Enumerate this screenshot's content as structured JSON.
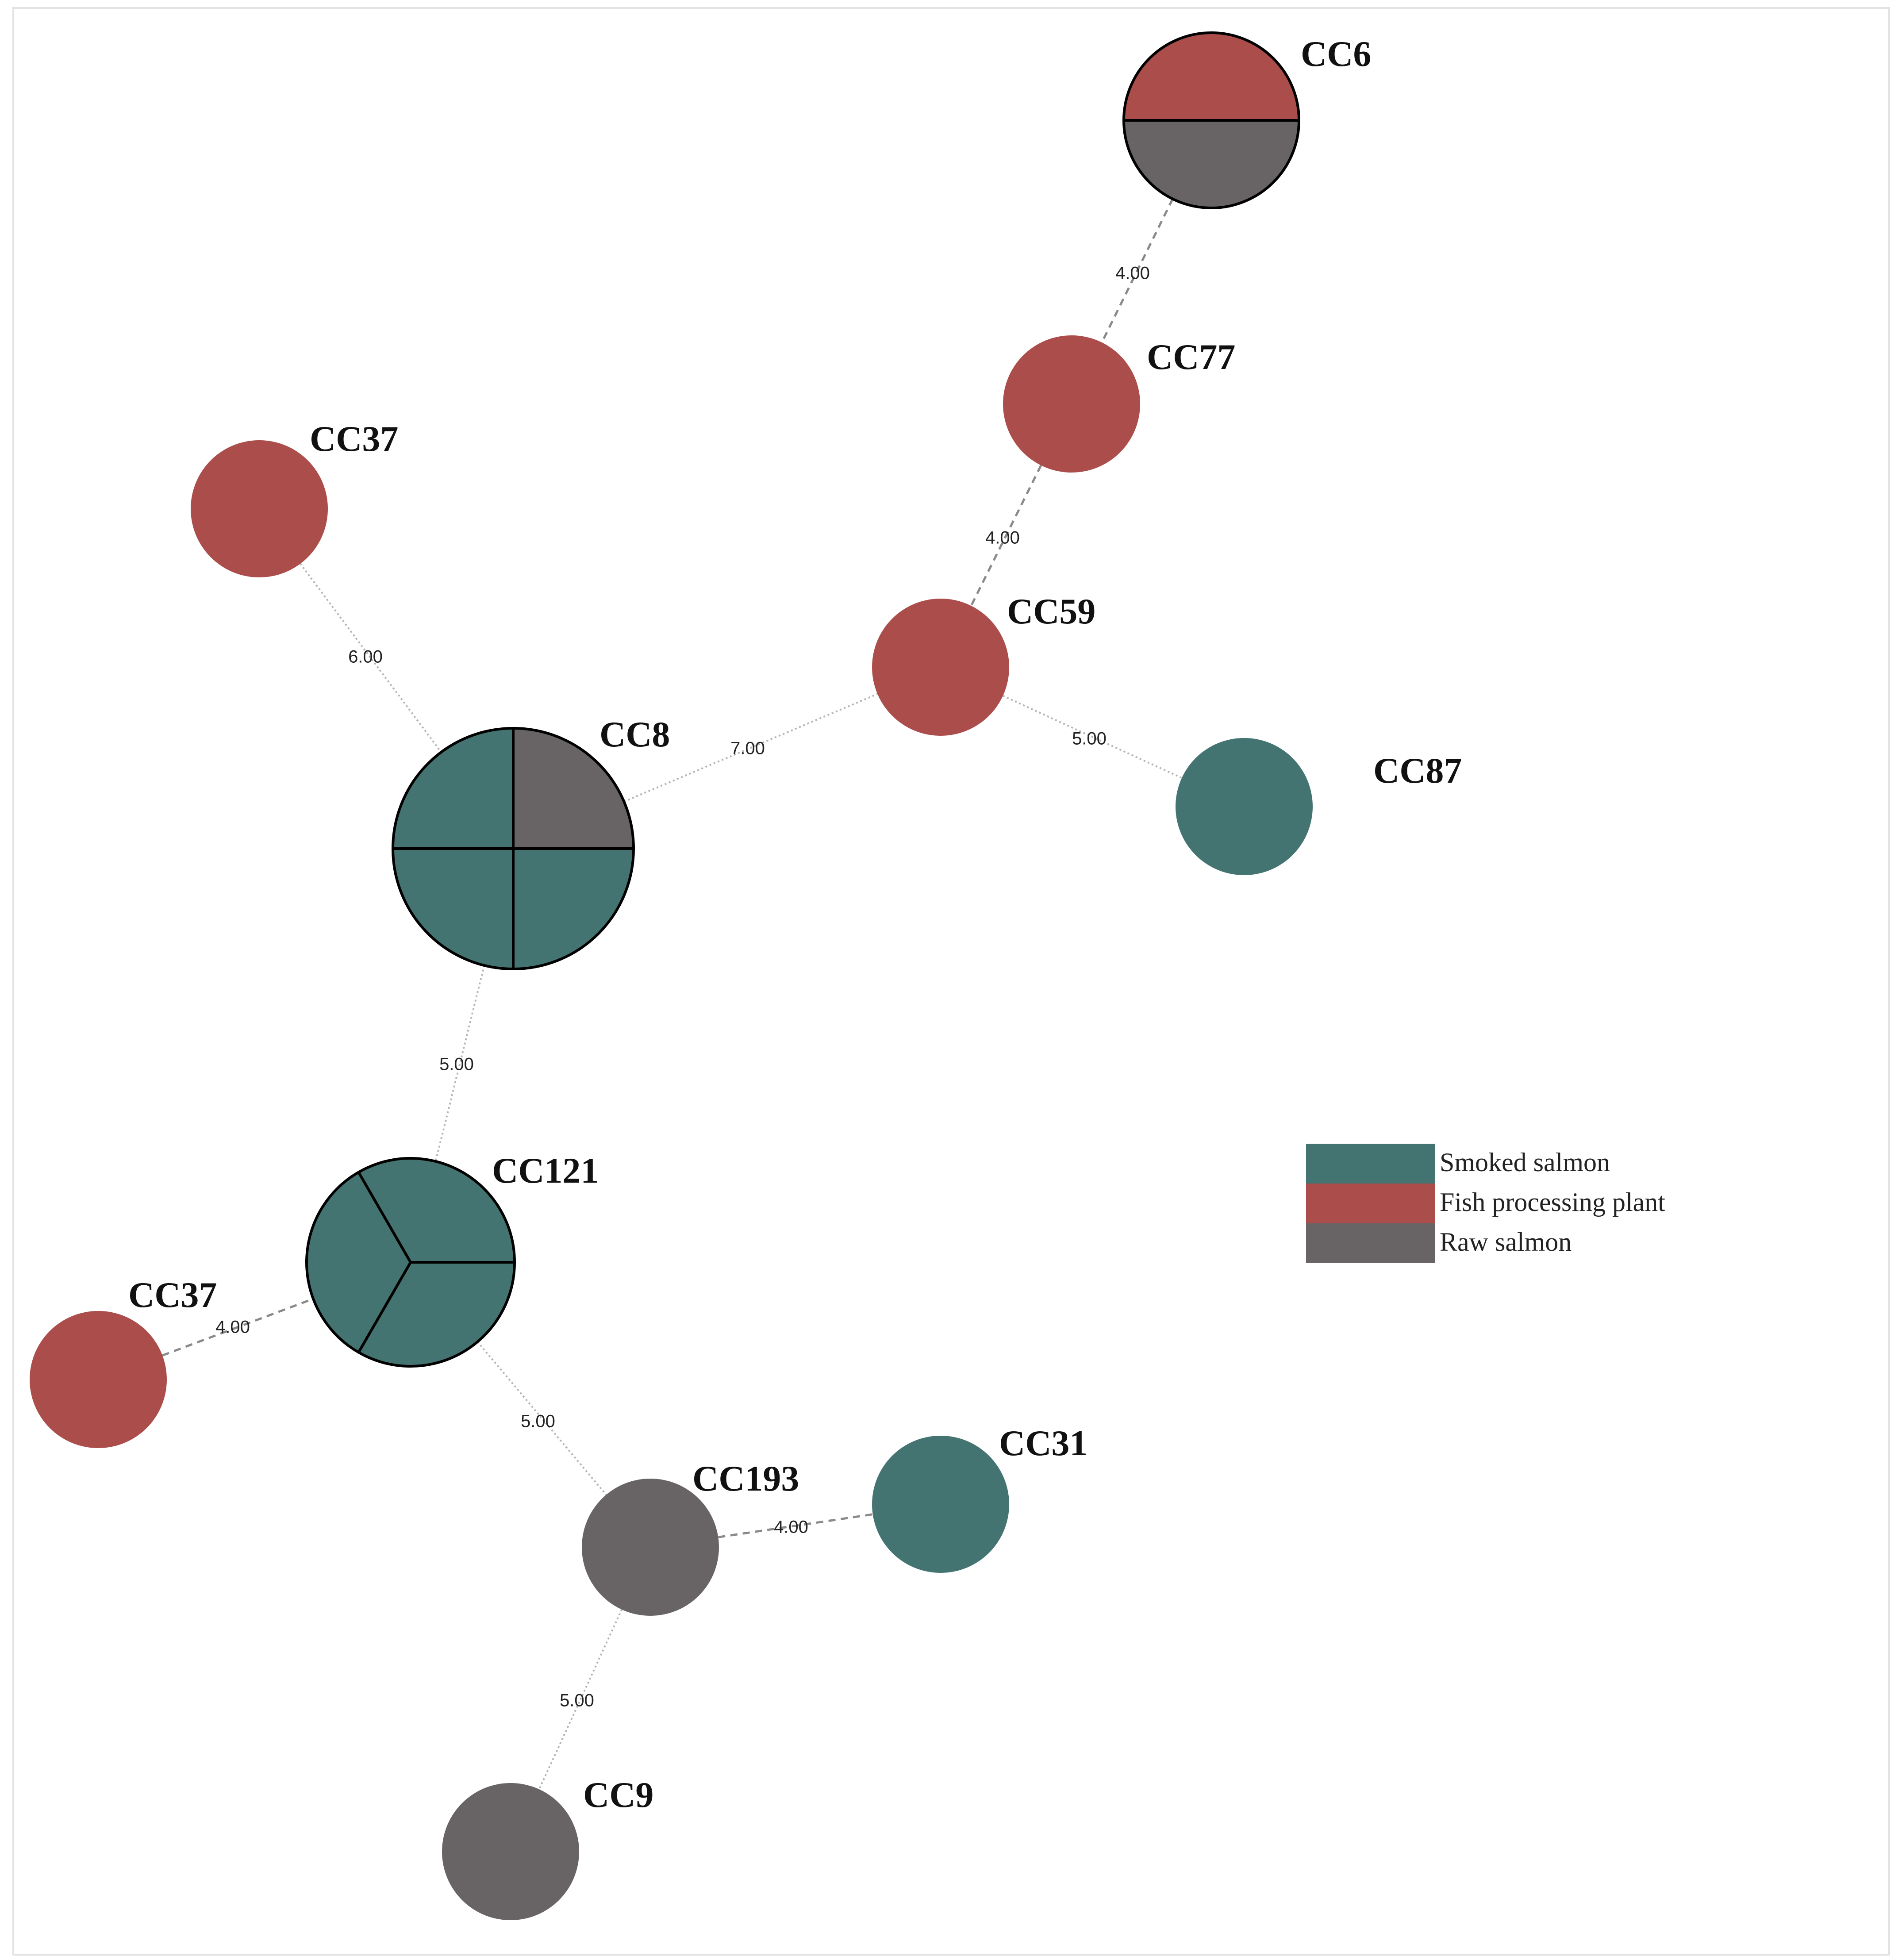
{
  "legend": {
    "items": [
      {
        "label": "Smoked salmon",
        "color": "#447471"
      },
      {
        "label": "Fish processing plant",
        "color": "#ab4d4b"
      },
      {
        "label": "Raw salmon",
        "color": "#686465"
      }
    ]
  },
  "nodes": [
    {
      "id": "cc6",
      "label": "CC6",
      "slices": [
        "Fish processing plant",
        "Raw salmon"
      ],
      "outlined": true
    },
    {
      "id": "cc77",
      "label": "CC77",
      "slices": [
        "Fish processing plant"
      ],
      "outlined": false
    },
    {
      "id": "cc37a",
      "label": "CC37",
      "slices": [
        "Fish processing plant"
      ],
      "outlined": false
    },
    {
      "id": "cc59",
      "label": "CC59",
      "slices": [
        "Fish processing plant"
      ],
      "outlined": false
    },
    {
      "id": "cc8",
      "label": "CC8",
      "slices": [
        "Smoked salmon",
        "Smoked salmon",
        "Smoked salmon",
        "Raw salmon"
      ],
      "outlined": true
    },
    {
      "id": "cc87",
      "label": "CC87",
      "slices": [
        "Smoked salmon"
      ],
      "outlined": false
    },
    {
      "id": "cc121",
      "label": "CC121",
      "slices": [
        "Smoked salmon",
        "Smoked salmon",
        "Smoked salmon"
      ],
      "outlined": true
    },
    {
      "id": "cc37b",
      "label": "CC37",
      "slices": [
        "Fish processing plant"
      ],
      "outlined": false
    },
    {
      "id": "cc193",
      "label": "CC193",
      "slices": [
        "Raw salmon"
      ],
      "outlined": false
    },
    {
      "id": "cc31",
      "label": "CC31",
      "slices": [
        "Smoked salmon"
      ],
      "outlined": false
    },
    {
      "id": "cc9",
      "label": "CC9",
      "slices": [
        "Raw salmon"
      ],
      "outlined": false
    }
  ],
  "edges": [
    {
      "source": "cc6",
      "target": "cc77",
      "label": "4.00",
      "style": "dashed"
    },
    {
      "source": "cc77",
      "target": "cc59",
      "label": "4.00",
      "style": "dashed"
    },
    {
      "source": "cc37a",
      "target": "cc8",
      "label": "6.00",
      "style": "dotted"
    },
    {
      "source": "cc8",
      "target": "cc59",
      "label": "7.00",
      "style": "dotted"
    },
    {
      "source": "cc59",
      "target": "cc87",
      "label": "5.00",
      "style": "dotted"
    },
    {
      "source": "cc8",
      "target": "cc121",
      "label": "5.00",
      "style": "dotted"
    },
    {
      "source": "cc37b",
      "target": "cc121",
      "label": "4.00",
      "style": "dashed"
    },
    {
      "source": "cc121",
      "target": "cc193",
      "label": "5.00",
      "style": "dotted"
    },
    {
      "source": "cc193",
      "target": "cc31",
      "label": "4.00",
      "style": "dashed"
    },
    {
      "source": "cc193",
      "target": "cc9",
      "label": "5.00",
      "style": "dotted"
    }
  ]
}
